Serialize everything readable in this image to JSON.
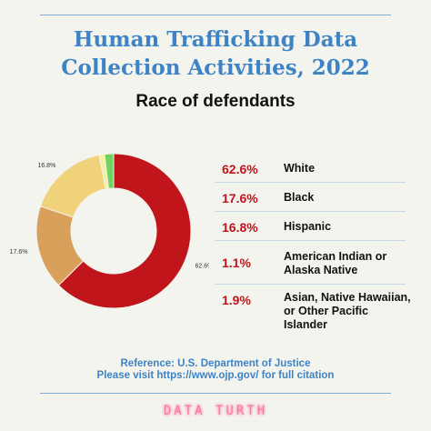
{
  "header": {
    "title_line1": "Human Trafficking Data",
    "title_line2": "Collection Activities, 2022",
    "subtitle": "Race of defendants"
  },
  "chart_data": {
    "type": "pie",
    "title": "Human Trafficking Data Collection Activities, 2022",
    "subtitle": "Race of defendants",
    "donut": true,
    "slices": [
      {
        "label": "White",
        "value": 62.6,
        "display": "62.6%",
        "color": "#c0151b"
      },
      {
        "label": "Black",
        "value": 17.6,
        "display": "17.6%",
        "color": "#d9a05b"
      },
      {
        "label": "Hispanic",
        "value": 16.8,
        "display": "16.8%",
        "color": "#f0d27a"
      },
      {
        "label": "American Indian or Alaska Native",
        "value": 1.1,
        "display": "1.1%",
        "color": "#f6ef9e"
      },
      {
        "label": "Asian, Native Hawaiian, or Other Pacific Islander",
        "value": 1.9,
        "display": "1.9%",
        "color": "#6fd45e"
      }
    ]
  },
  "legend": [
    {
      "pct": "62.6%",
      "label": "White"
    },
    {
      "pct": "17.6%",
      "label": "Black"
    },
    {
      "pct": "16.8%",
      "label": "Hispanic"
    },
    {
      "pct": "1.1%",
      "label": "American Indian or Alaska Native"
    },
    {
      "pct": "1.9%",
      "label": "Asian, Native Hawaiian, or Other Pacific Islander"
    }
  ],
  "footer": {
    "reference": "Reference: U.S. Department of Justice",
    "citation": "Please visit https://www.ojp.gov/ for full citation",
    "brand": "DATA TURTH"
  },
  "colors": {
    "title": "#3d83c6",
    "accent": "#c0151b",
    "background": "#f4f4ee"
  }
}
